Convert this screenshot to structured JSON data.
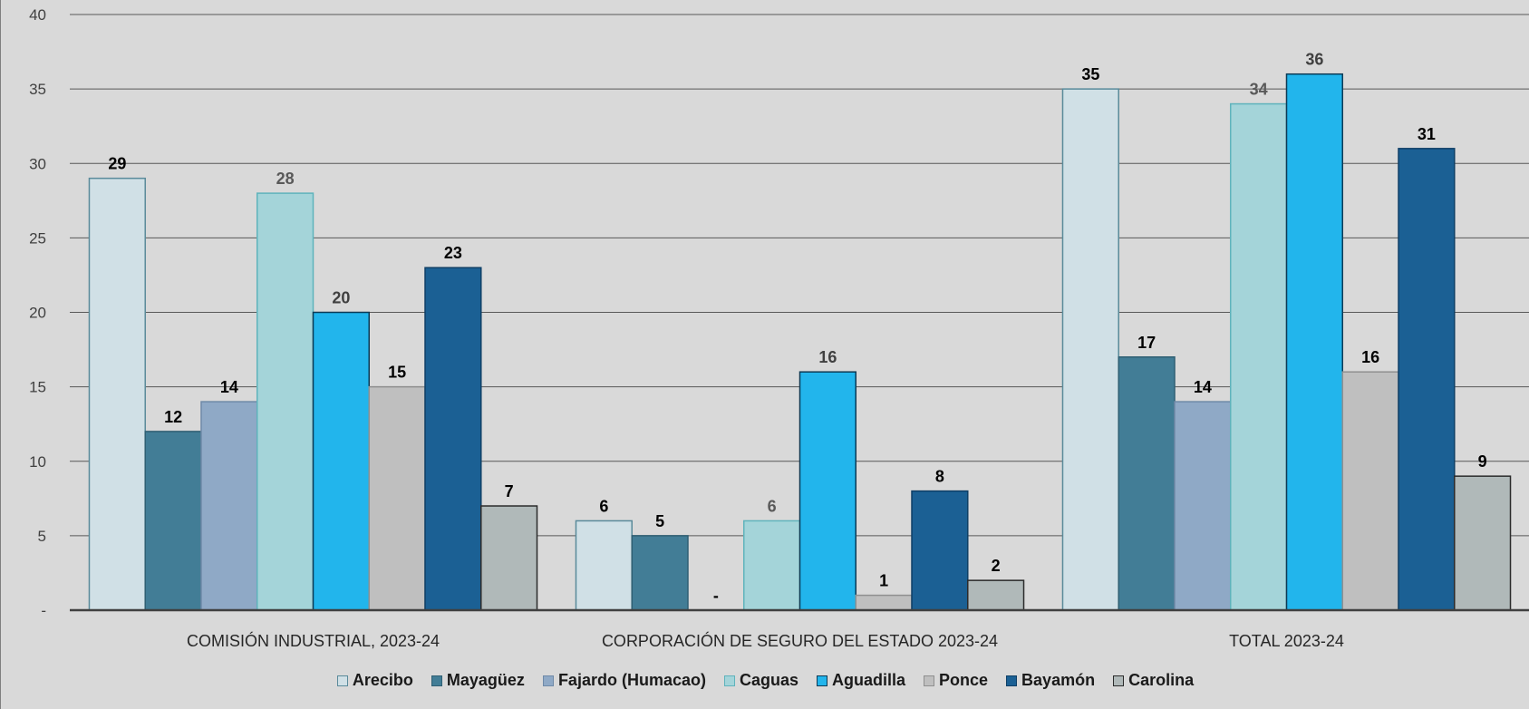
{
  "chart_data": {
    "type": "bar",
    "categories": [
      "COMISIÓN INDUSTRIAL, 2023-24",
      "CORPORACIÓN DE SEGURO DEL ESTADO 2023-24",
      "TOTAL 2023-24"
    ],
    "series": [
      {
        "name": "Arecibo",
        "color": "#d0e0e6",
        "stroke": "#5a8a9a",
        "label_color": "#000000",
        "values": [
          29,
          6,
          35
        ],
        "labels": [
          "29",
          "6",
          "35"
        ]
      },
      {
        "name": "Mayagüez",
        "color": "#427d96",
        "stroke": "#2f5f73",
        "label_color": "#000000",
        "values": [
          12,
          5,
          17
        ],
        "labels": [
          "12",
          "5",
          "17"
        ]
      },
      {
        "name": "Fajardo (Humacao)",
        "color": "#8fa9c6",
        "stroke": "#6f8aa8",
        "label_color": "#000000",
        "values": [
          14,
          0,
          14
        ],
        "labels": [
          "14",
          "-",
          "14"
        ]
      },
      {
        "name": "Caguas",
        "color": "#a4d4d9",
        "stroke": "#5fb3bc",
        "label_color": "#595959",
        "values": [
          28,
          6,
          34
        ],
        "labels": [
          "28",
          "6",
          "34"
        ]
      },
      {
        "name": "Aguadilla",
        "color": "#22b5ec",
        "stroke": "#0d3a55",
        "label_color": "#404040",
        "values": [
          20,
          16,
          36
        ],
        "labels": [
          "20",
          "16",
          "36"
        ]
      },
      {
        "name": "Ponce",
        "color": "#bfbfbf",
        "stroke": "#8f8f8f",
        "label_color": "#000000",
        "values": [
          15,
          1,
          16
        ],
        "labels": [
          "15",
          "1",
          "16"
        ]
      },
      {
        "name": "Bayamón",
        "color": "#1b6094",
        "stroke": "#0f3f66",
        "label_color": "#000000",
        "values": [
          23,
          8,
          31
        ],
        "labels": [
          "23",
          "8",
          "31"
        ]
      },
      {
        "name": "Carolina",
        "color": "#b0b9b9",
        "stroke": "#2b2b2b",
        "label_color": "#000000",
        "values": [
          7,
          2,
          9
        ],
        "labels": [
          "7",
          "2",
          "9"
        ]
      }
    ],
    "y_ticks": [
      {
        "value": 0,
        "label": "-"
      },
      {
        "value": 5,
        "label": "5"
      },
      {
        "value": 10,
        "label": "10"
      },
      {
        "value": 15,
        "label": "15"
      },
      {
        "value": 20,
        "label": "20"
      },
      {
        "value": 25,
        "label": "25"
      },
      {
        "value": 30,
        "label": "30"
      },
      {
        "value": 35,
        "label": "35"
      },
      {
        "value": 40,
        "label": "40"
      }
    ],
    "ylim": [
      0,
      40
    ],
    "grid": true,
    "legend_position": "bottom",
    "title": "",
    "xlabel": "",
    "ylabel": ""
  }
}
